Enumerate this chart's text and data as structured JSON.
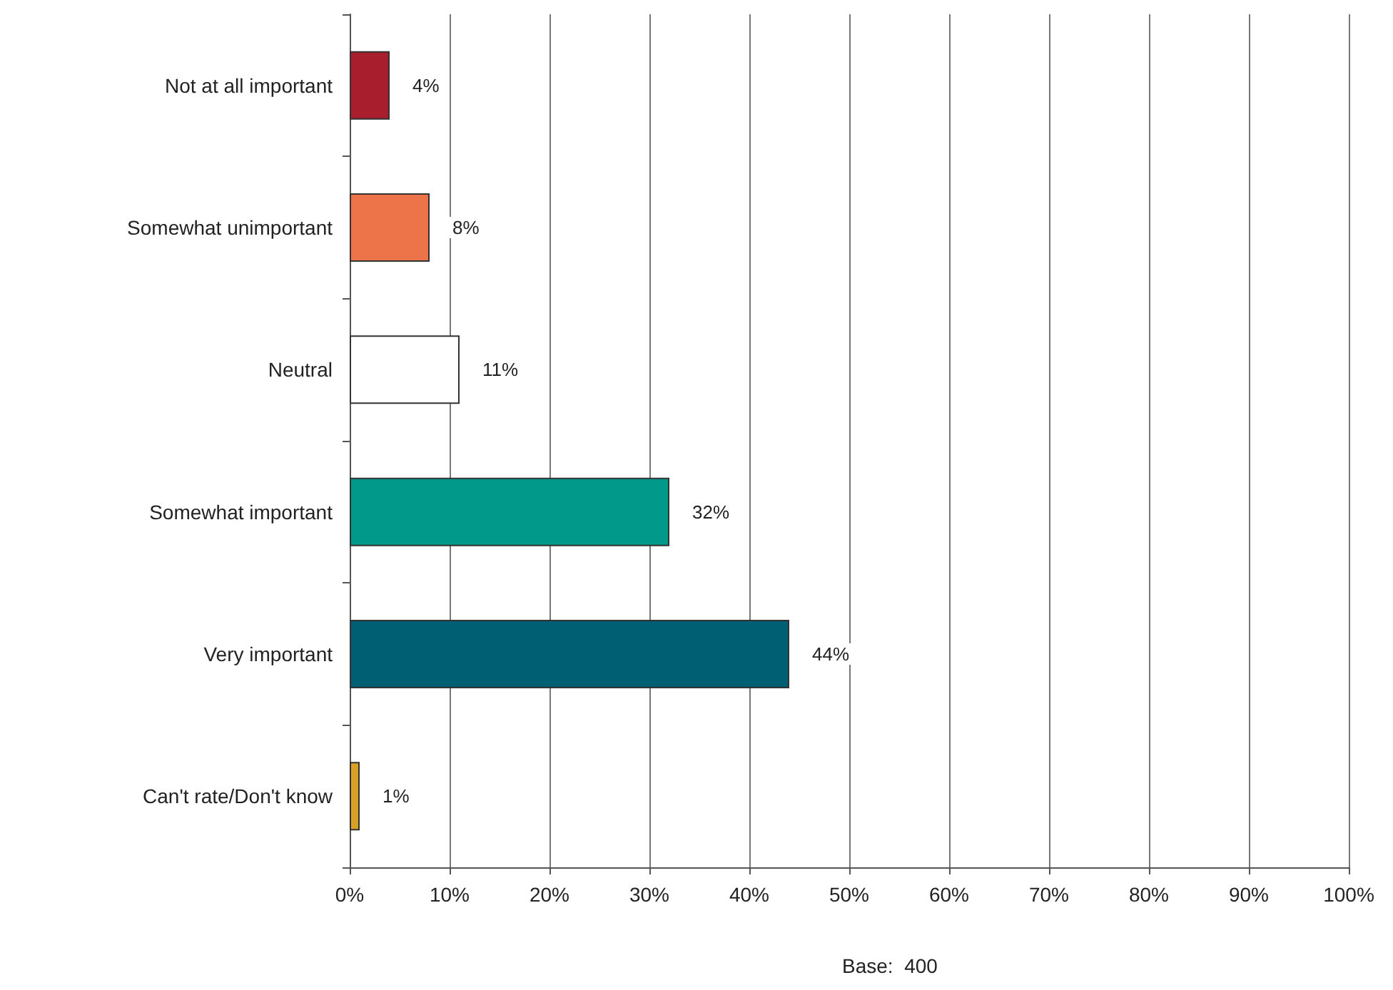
{
  "chart_data": {
    "type": "bar",
    "orientation": "horizontal",
    "categories": [
      "Not at all important",
      "Somewhat unimportant",
      "Neutral",
      "Somewhat important",
      "Very important",
      "Can't rate/Don't know"
    ],
    "values": [
      4,
      8,
      11,
      32,
      44,
      1
    ],
    "colors": [
      "#a81e2c",
      "#ec7448",
      "#ffffff",
      "#00998a",
      "#005f72",
      "#d9a227"
    ],
    "value_labels": [
      "4%",
      "8%",
      "11%",
      "32%",
      "44%",
      "1%"
    ],
    "xlim": [
      0,
      100
    ],
    "xticks": [
      {
        "value": 0,
        "label": "0%"
      },
      {
        "value": 10,
        "label": "10%"
      },
      {
        "value": 20,
        "label": "20%"
      },
      {
        "value": 30,
        "label": "30%"
      },
      {
        "value": 40,
        "label": "40%"
      },
      {
        "value": 50,
        "label": "50%"
      },
      {
        "value": 60,
        "label": "60%"
      },
      {
        "value": 70,
        "label": "70%"
      },
      {
        "value": 80,
        "label": "80%"
      },
      {
        "value": 90,
        "label": "90%"
      },
      {
        "value": 100,
        "label": "100%"
      }
    ],
    "grid": "x",
    "annotations": [
      "Base:  400"
    ]
  }
}
